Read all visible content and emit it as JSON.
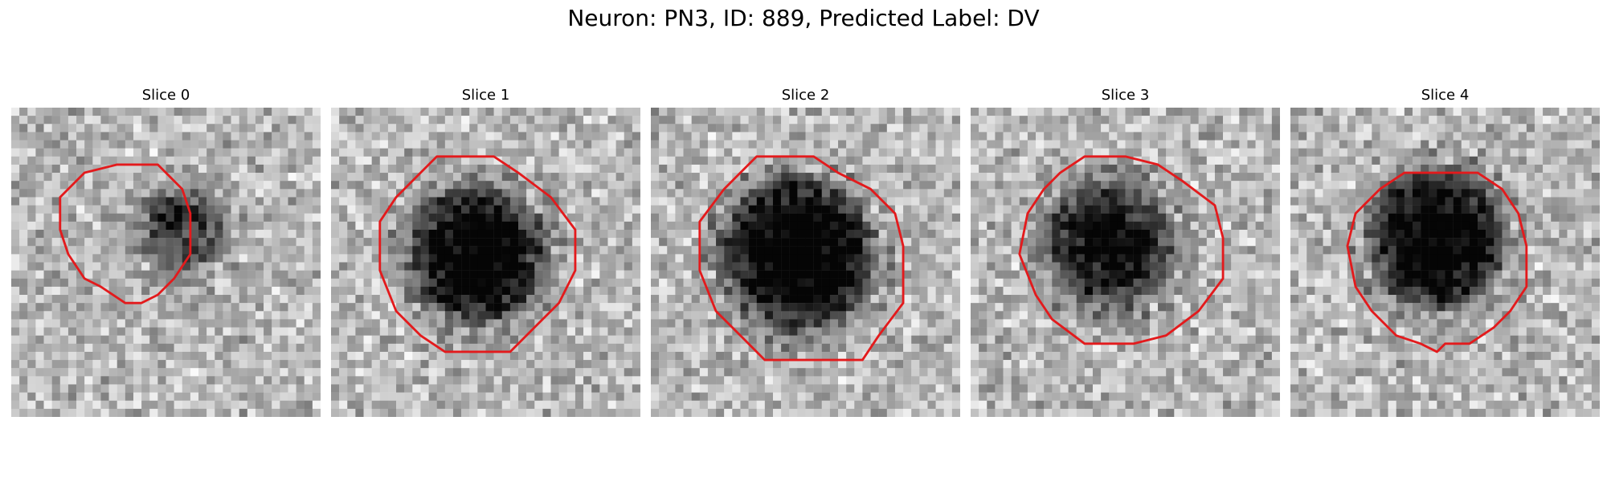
{
  "figure": {
    "title": "Neuron: PN3, ID: 889, Predicted Label: DV",
    "contour_color": "#e31a1c",
    "colormap": "gray"
  },
  "panels": [
    {
      "title": "Slice 0",
      "blob_darkness": 0.45,
      "shape": "faint-ring"
    },
    {
      "title": "Slice 1",
      "blob_darkness": 0.8,
      "shape": "round"
    },
    {
      "title": "Slice 2",
      "blob_darkness": 0.85,
      "shape": "round-large"
    },
    {
      "title": "Slice 3",
      "blob_darkness": 0.7,
      "shape": "round"
    },
    {
      "title": "Slice 4",
      "blob_darkness": 0.8,
      "shape": "upper-offset"
    }
  ]
}
